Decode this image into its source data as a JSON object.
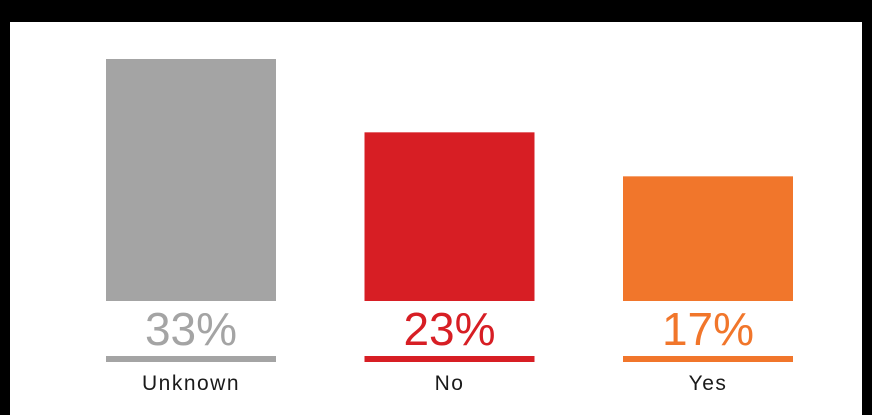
{
  "chart_data": {
    "type": "bar",
    "categories": [
      "Unknown",
      "No",
      "Yes"
    ],
    "values": [
      33,
      23,
      17
    ],
    "value_labels": [
      "33%",
      "23%",
      "17%"
    ],
    "colors": [
      "#a4a4a4",
      "#d71e24",
      "#f1762b"
    ],
    "label_colors": [
      "#a4a4a4",
      "#d71e24",
      "#f1762b"
    ],
    "category_text_color": "#1a1a1a",
    "title": "",
    "xlabel": "",
    "ylabel": "",
    "ylim": [
      0,
      33
    ],
    "grid": false,
    "legend": "none"
  }
}
